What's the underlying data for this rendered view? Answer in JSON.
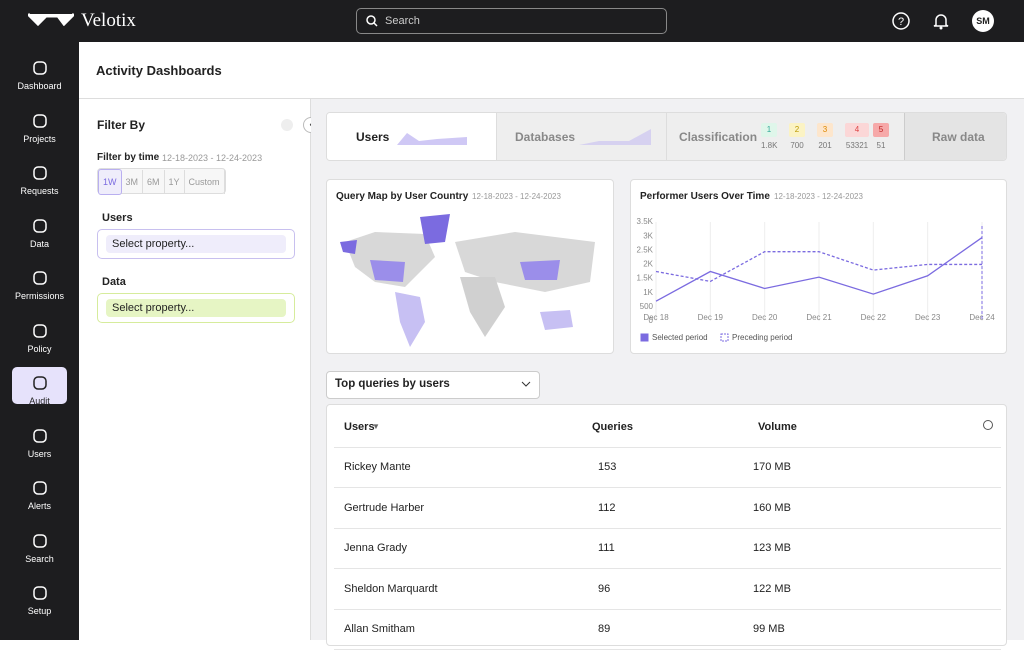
{
  "header": {
    "brand": "Velotix",
    "search": "Search",
    "avatar": "SM"
  },
  "nav": [
    "Dashboard",
    "Projects",
    "Requests",
    "Data",
    "Permissions",
    "Policy",
    "Audit",
    "Users",
    "Alerts",
    "Search",
    "Setup"
  ],
  "page_title": "Activity Dashboards",
  "filter": {
    "title": "Filter By",
    "time_label": "Filter by time",
    "date": "12-18-2023 - 12-24-2023",
    "ranges": [
      "1W",
      "3M",
      "6M",
      "1Y",
      "Custom"
    ],
    "users_label": "Users",
    "users_placeholder": "Select property...",
    "data_label": "Data",
    "data_placeholder": "Select property..."
  },
  "tabs": {
    "users": "Users",
    "databases": "Databases",
    "classification": "Classification",
    "levels": [
      "1",
      "2",
      "3",
      "4",
      "5"
    ],
    "counts": [
      "1.8K",
      "700",
      "201",
      "53321",
      "51"
    ],
    "raw": "Raw data"
  },
  "map": {
    "title": "Query Map by User Country",
    "date": "12-18-2023 - 12-24-2023"
  },
  "chart_data": {
    "type": "line",
    "title": "Performer Users Over Time",
    "subtitle": "12-18-2023 - 12-24-2023",
    "categories": [
      "Dec 18",
      "Dec 19",
      "Dec 20",
      "Dec 21",
      "Dec 22",
      "Dec 23",
      "Dec 24"
    ],
    "series": [
      {
        "name": "Selected period",
        "color": "#7b6be0",
        "values": [
          700,
          1750,
          1150,
          1550,
          950,
          1600,
          2950
        ]
      },
      {
        "name": "Preceding period",
        "color": "#7b6be0",
        "dashed": true,
        "values": [
          1750,
          1400,
          2450,
          2450,
          1800,
          2000,
          2000
        ]
      }
    ],
    "ylim": [
      0,
      3500
    ],
    "yticks": [
      0,
      500,
      {
        "value": 1000,
        "label": "1K"
      },
      {
        "value": 1500,
        "label": "1.5K"
      },
      {
        "value": 2000,
        "label": "2K"
      },
      {
        "value": 2500,
        "label": "2.5K"
      },
      {
        "value": 3000,
        "label": "3K"
      },
      {
        "value": 3500,
        "label": "3.5K"
      }
    ],
    "grid": true
  },
  "queries": {
    "dropdown": "Top queries by users",
    "columns": [
      "Users",
      "Queries",
      "Volume"
    ],
    "rows": [
      [
        "Rickey Mante",
        "153",
        "170 MB"
      ],
      [
        "Gertrude Harber",
        "112",
        "160 MB"
      ],
      [
        "Jenna Grady",
        "111",
        "123 MB"
      ],
      [
        "Sheldon Marquardt",
        "96",
        "122 MB"
      ],
      [
        "Allan Smitham",
        "89",
        "99 MB"
      ]
    ]
  }
}
